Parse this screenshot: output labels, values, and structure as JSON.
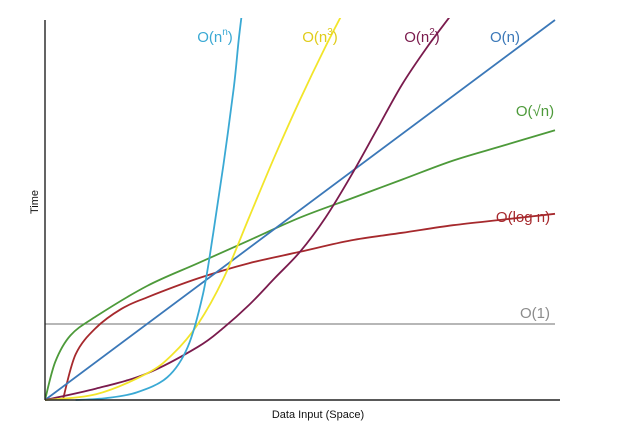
{
  "chart_data": {
    "type": "line",
    "title": "",
    "xlabel": "Data Input (Space)",
    "ylabel": "Time",
    "xlim": [
      0,
      1
    ],
    "ylim": [
      0,
      1
    ],
    "grid": false,
    "series": [
      {
        "key": "const",
        "name": "O(1)",
        "label_main": "O(1)",
        "label_sup": "",
        "label_tail": "",
        "color": "#8c8c8c",
        "x": [
          0,
          0.5,
          1
        ],
        "y": [
          0.2,
          0.2,
          0.2
        ]
      },
      {
        "key": "log",
        "name": "O(log n)",
        "label_main": "O(log n)",
        "label_sup": "",
        "label_tail": "",
        "color": "#a6292d",
        "x": [
          0.035,
          0.06,
          0.1,
          0.15,
          0.2,
          0.3,
          0.4,
          0.5,
          0.6,
          0.7,
          0.8,
          0.9,
          1.0
        ],
        "y": [
          0.0,
          0.12,
          0.19,
          0.24,
          0.27,
          0.32,
          0.36,
          0.39,
          0.42,
          0.44,
          0.46,
          0.475,
          0.49
        ]
      },
      {
        "key": "sqrt",
        "name": "O(√n)",
        "label_main": "O(√n)",
        "label_sup": "",
        "label_tail": "",
        "color": "#4d9a3a",
        "x": [
          0,
          0.02,
          0.05,
          0.1,
          0.2,
          0.3,
          0.4,
          0.5,
          0.6,
          0.7,
          0.8,
          0.9,
          1.0
        ],
        "y": [
          0,
          0.1,
          0.17,
          0.22,
          0.3,
          0.36,
          0.42,
          0.48,
          0.53,
          0.58,
          0.63,
          0.67,
          0.71
        ]
      },
      {
        "key": "linear",
        "name": "O(n)",
        "label_main": "O(n)",
        "label_sup": "",
        "label_tail": "",
        "color": "#3b78b8",
        "x": [
          0,
          1
        ],
        "y": [
          0,
          1.0
        ]
      },
      {
        "key": "quad",
        "name": "O(n²)",
        "label_main": "O(n",
        "label_sup": "2",
        "label_tail": ")",
        "color": "#7a1b4d",
        "x": [
          0,
          0.1,
          0.2,
          0.3,
          0.35,
          0.4,
          0.45,
          0.5,
          0.55,
          0.6,
          0.65,
          0.7,
          0.75,
          0.8,
          0.82
        ],
        "y": [
          0,
          0.03,
          0.07,
          0.14,
          0.19,
          0.25,
          0.32,
          0.39,
          0.48,
          0.59,
          0.71,
          0.83,
          0.93,
          1.02,
          1.06
        ]
      },
      {
        "key": "cubic",
        "name": "O(n³)",
        "label_main": "O(n",
        "label_sup": "3",
        "label_tail": ")",
        "color": "#f2e52a",
        "x": [
          0,
          0.1,
          0.2,
          0.25,
          0.3,
          0.35,
          0.4,
          0.45,
          0.5,
          0.55,
          0.6
        ],
        "y": [
          0,
          0.015,
          0.07,
          0.12,
          0.2,
          0.32,
          0.48,
          0.64,
          0.79,
          0.93,
          1.06
        ]
      },
      {
        "key": "exp",
        "name": "O(nⁿ)",
        "label_main": "O(n",
        "label_sup": "n",
        "label_tail": ")",
        "color": "#3aa9d4",
        "x": [
          0.06,
          0.12,
          0.18,
          0.24,
          0.28,
          0.31,
          0.33,
          0.35,
          0.37,
          0.38,
          0.39
        ],
        "y": [
          0.0,
          0.005,
          0.02,
          0.06,
          0.14,
          0.28,
          0.44,
          0.62,
          0.82,
          0.95,
          1.06
        ]
      }
    ]
  }
}
